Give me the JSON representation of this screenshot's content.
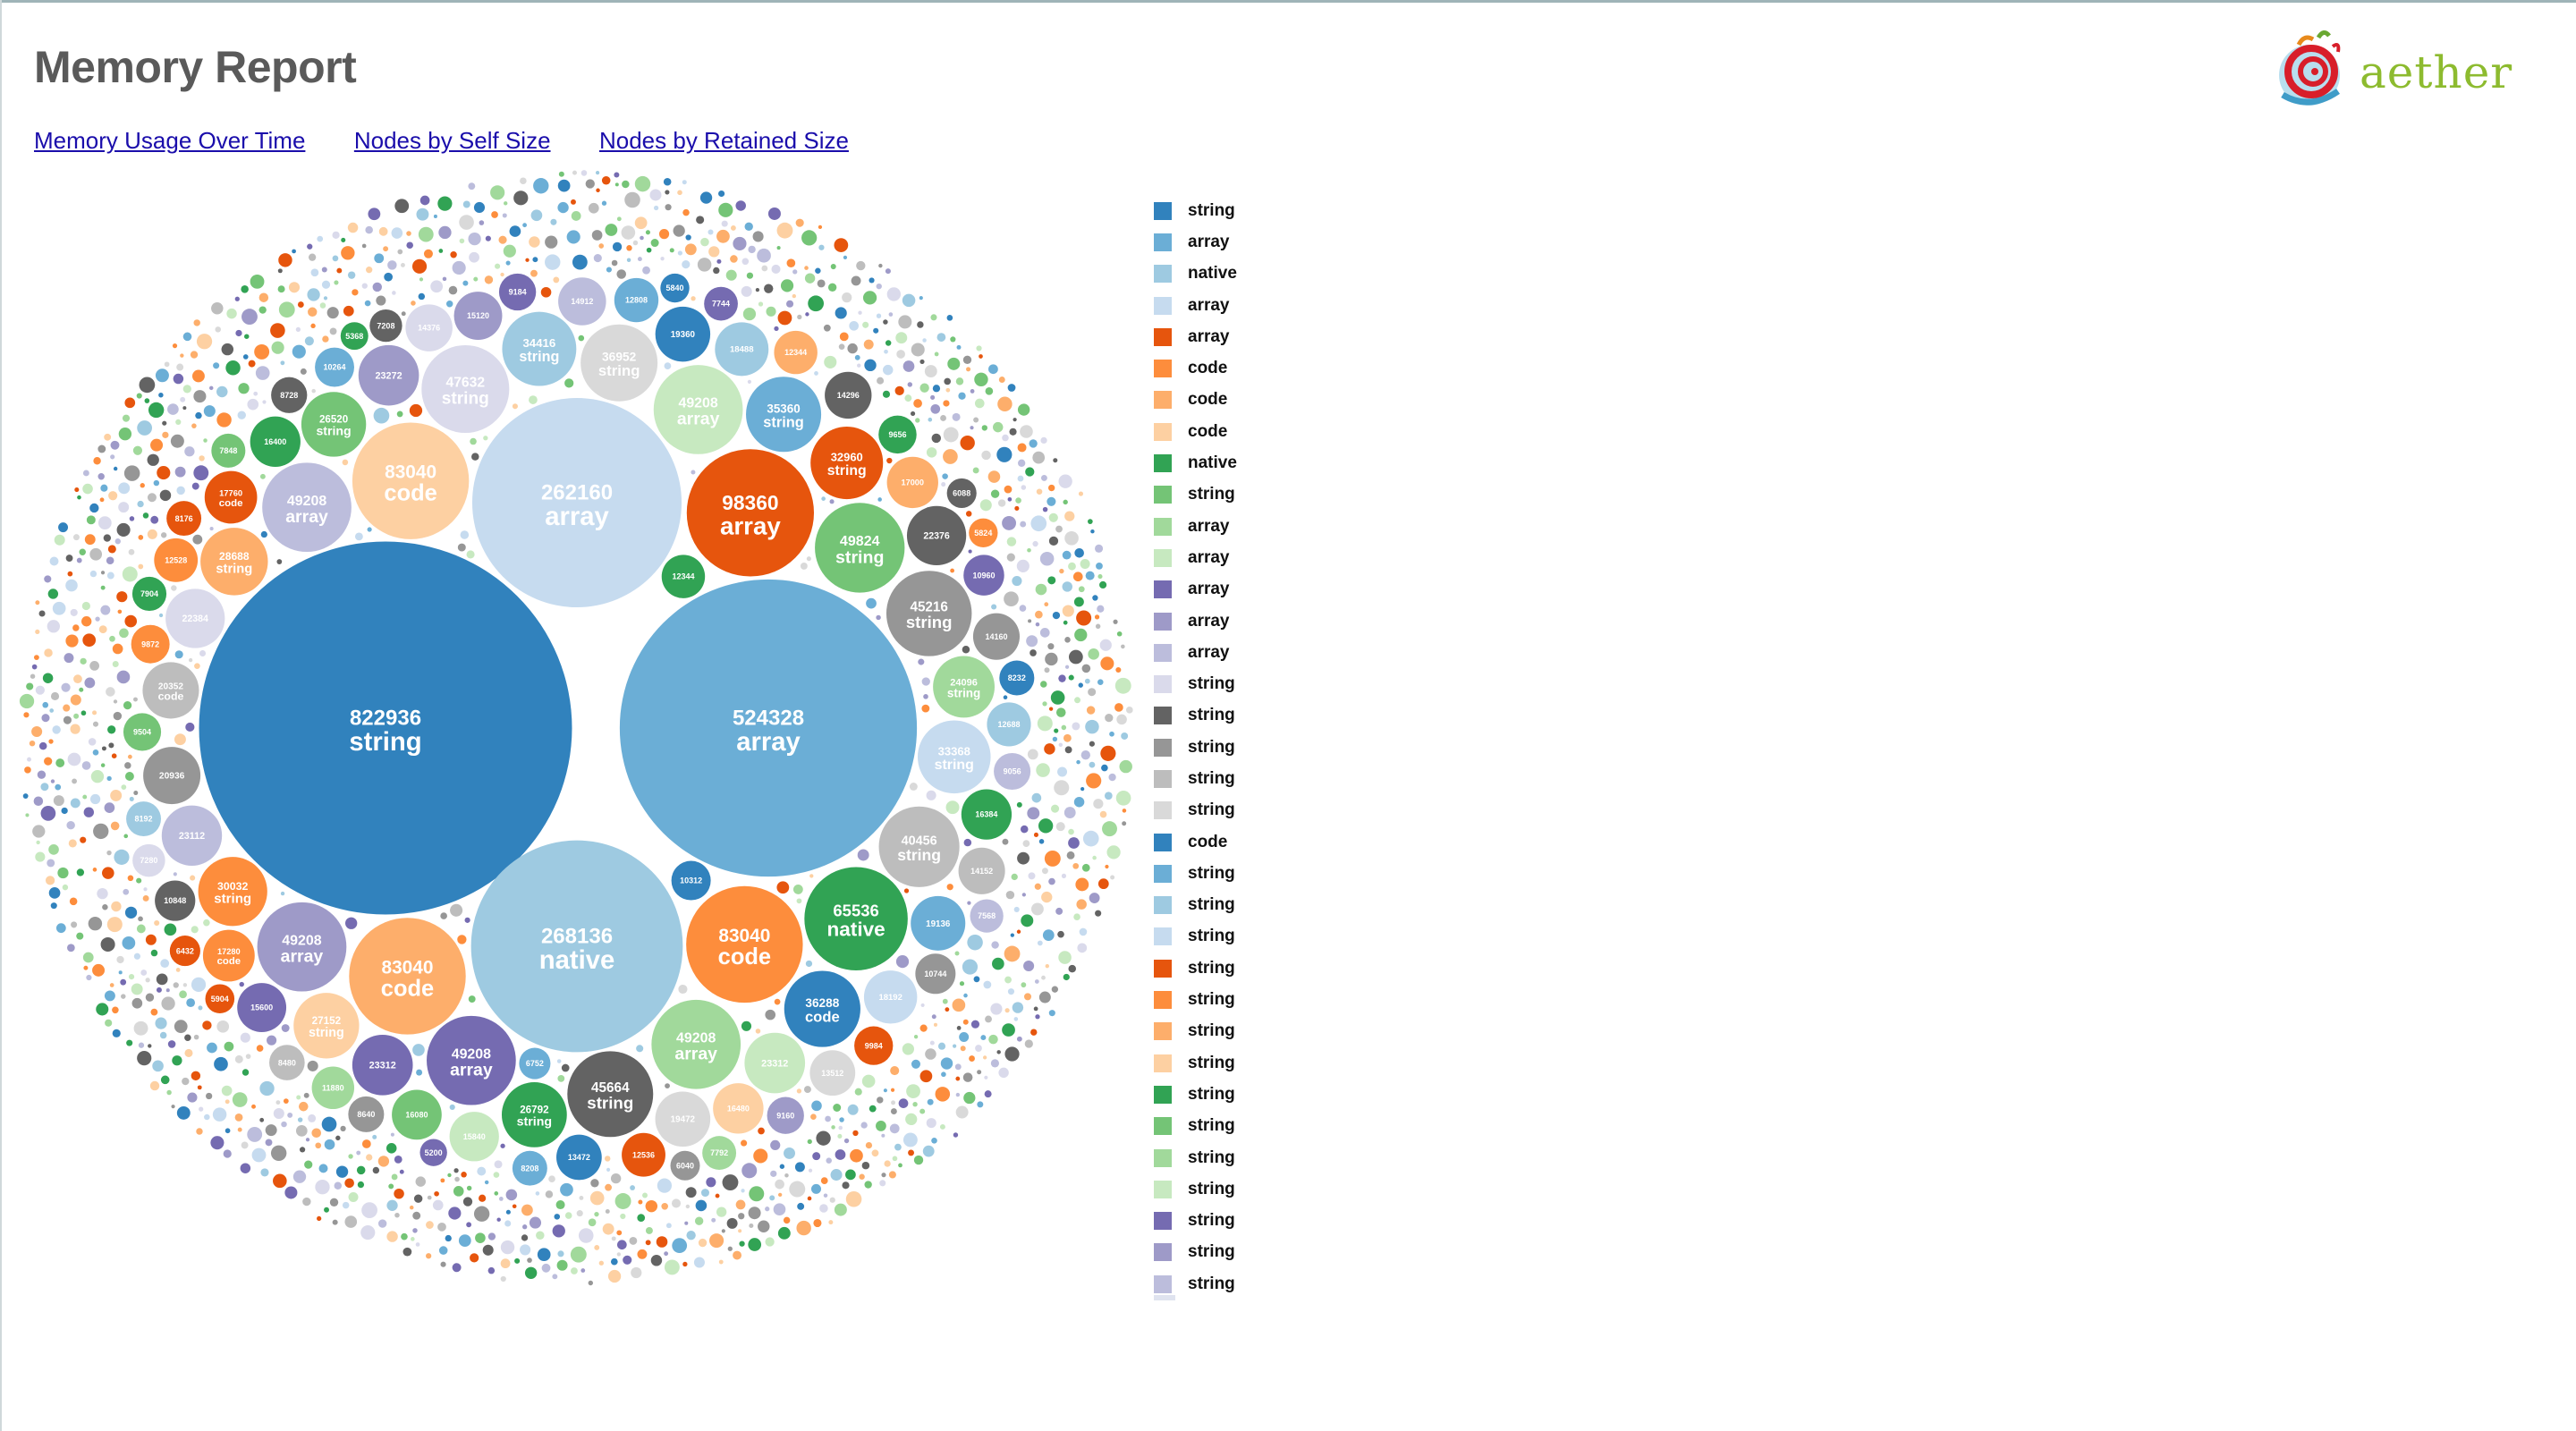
{
  "header": {
    "title": "Memory Report",
    "logo_text": "aether"
  },
  "nav": {
    "links": [
      "Memory Usage Over Time",
      "Nodes by Self Size",
      "Nodes by Retained Size"
    ]
  },
  "palette": [
    "#3182bd",
    "#6baed6",
    "#9ecae1",
    "#c6dbef",
    "#e6550d",
    "#fd8d3c",
    "#fdae6b",
    "#fdd0a2",
    "#31a354",
    "#74c476",
    "#a1d99b",
    "#c7e9c0",
    "#756bb1",
    "#9e9ac8",
    "#bcbddc",
    "#dadaeb",
    "#636363",
    "#969696",
    "#bdbdbd",
    "#d9d9d9"
  ],
  "chart_data": {
    "type": "bubble",
    "title": "",
    "legend_position": "right",
    "legend": [
      {
        "label": "string",
        "color": "#3182bd"
      },
      {
        "label": "array",
        "color": "#6baed6"
      },
      {
        "label": "native",
        "color": "#9ecae1"
      },
      {
        "label": "array",
        "color": "#c6dbef"
      },
      {
        "label": "array",
        "color": "#e6550d"
      },
      {
        "label": "code",
        "color": "#fd8d3c"
      },
      {
        "label": "code",
        "color": "#fdae6b"
      },
      {
        "label": "code",
        "color": "#fdd0a2"
      },
      {
        "label": "native",
        "color": "#31a354"
      },
      {
        "label": "string",
        "color": "#74c476"
      },
      {
        "label": "array",
        "color": "#a1d99b"
      },
      {
        "label": "array",
        "color": "#c7e9c0"
      },
      {
        "label": "array",
        "color": "#756bb1"
      },
      {
        "label": "array",
        "color": "#9e9ac8"
      },
      {
        "label": "array",
        "color": "#bcbddc"
      },
      {
        "label": "string",
        "color": "#dadaeb"
      },
      {
        "label": "string",
        "color": "#636363"
      },
      {
        "label": "string",
        "color": "#969696"
      },
      {
        "label": "string",
        "color": "#bdbdbd"
      },
      {
        "label": "string",
        "color": "#d9d9d9"
      },
      {
        "label": "code",
        "color": "#3182bd"
      },
      {
        "label": "string",
        "color": "#6baed6"
      },
      {
        "label": "string",
        "color": "#9ecae1"
      },
      {
        "label": "string",
        "color": "#c6dbef"
      },
      {
        "label": "string",
        "color": "#e6550d"
      },
      {
        "label": "string",
        "color": "#fd8d3c"
      },
      {
        "label": "string",
        "color": "#fdae6b"
      },
      {
        "label": "string",
        "color": "#fdd0a2"
      },
      {
        "label": "string",
        "color": "#31a354"
      },
      {
        "label": "string",
        "color": "#74c476"
      },
      {
        "label": "string",
        "color": "#a1d99b"
      },
      {
        "label": "string",
        "color": "#c7e9c0"
      },
      {
        "label": "string",
        "color": "#756bb1"
      },
      {
        "label": "string",
        "color": "#9e9ac8"
      },
      {
        "label": "string",
        "color": "#bcbddc"
      }
    ],
    "nodes": [
      {
        "value": 822936,
        "label": "string",
        "color": "#3182bd"
      },
      {
        "value": 524328,
        "label": "array",
        "color": "#6baed6"
      },
      {
        "value": 268136,
        "label": "native",
        "color": "#9ecae1"
      },
      {
        "value": 262160,
        "label": "array",
        "color": "#c6dbef"
      },
      {
        "value": 98360,
        "label": "array",
        "color": "#e6550d"
      },
      {
        "value": 83040,
        "label": "code",
        "color": "#fd8d3c"
      },
      {
        "value": 83040,
        "label": "code",
        "color": "#fdae6b"
      },
      {
        "value": 83040,
        "label": "code",
        "color": "#fdd0a2"
      },
      {
        "value": 65536,
        "label": "native",
        "color": "#31a354"
      },
      {
        "value": 49824,
        "label": "string",
        "color": "#74c476"
      },
      {
        "value": 49208,
        "label": "array",
        "color": "#a1d99b"
      },
      {
        "value": 49208,
        "label": "array",
        "color": "#c7e9c0"
      },
      {
        "value": 49208,
        "label": "array",
        "color": "#756bb1"
      },
      {
        "value": 49208,
        "label": "array",
        "color": "#9e9ac8"
      },
      {
        "value": 49208,
        "label": "array",
        "color": "#bcbddc"
      },
      {
        "value": 47632,
        "label": "string",
        "color": "#dadaeb"
      },
      {
        "value": 45664,
        "label": "string",
        "color": "#636363"
      },
      {
        "value": 45216,
        "label": "string",
        "color": "#969696"
      },
      {
        "value": 40456,
        "label": "string",
        "color": "#bdbdbd"
      },
      {
        "value": 36952,
        "label": "string",
        "color": "#d9d9d9"
      },
      {
        "value": 36288,
        "label": "code",
        "color": "#3182bd"
      },
      {
        "value": 35360,
        "label": "string",
        "color": "#6baed6"
      },
      {
        "value": 34416,
        "label": "string",
        "color": "#9ecae1"
      },
      {
        "value": 33368,
        "label": "string",
        "color": "#c6dbef"
      },
      {
        "value": 32960,
        "label": "string",
        "color": "#e6550d"
      },
      {
        "value": 30032,
        "label": "string",
        "color": "#fd8d3c"
      },
      {
        "value": 28688,
        "label": "string",
        "color": "#fdae6b"
      },
      {
        "value": 27152,
        "label": "string",
        "color": "#fdd0a2"
      },
      {
        "value": 26792,
        "label": "string",
        "color": "#31a354"
      },
      {
        "value": 26520,
        "label": "string",
        "color": "#74c476"
      },
      {
        "value": 24096,
        "label": "string",
        "color": "#a1d99b"
      },
      {
        "value": 23312,
        "label": "",
        "color": "#c7e9c0"
      },
      {
        "value": 23312,
        "label": "",
        "color": "#756bb1"
      },
      {
        "value": 23272,
        "label": "",
        "color": "#9e9ac8"
      },
      {
        "value": 23112,
        "label": "",
        "color": "#bcbddc"
      },
      {
        "value": 22384,
        "label": "",
        "color": "#dadaeb"
      },
      {
        "value": 22376,
        "label": "",
        "color": "#636363"
      },
      {
        "value": 20936,
        "label": "",
        "color": "#969696"
      },
      {
        "value": 20352,
        "label": "code",
        "color": "#bdbdbd"
      },
      {
        "value": 19472,
        "label": "",
        "color": "#d9d9d9"
      },
      {
        "value": 19360,
        "label": "",
        "color": "#3182bd"
      },
      {
        "value": 19136,
        "label": "",
        "color": "#6baed6"
      },
      {
        "value": 18488,
        "label": "",
        "color": "#9ecae1"
      },
      {
        "value": 18192,
        "label": "",
        "color": "#c6dbef"
      },
      {
        "value": 17760,
        "label": "code",
        "color": "#e6550d"
      },
      {
        "value": 17280,
        "label": "code",
        "color": "#fd8d3c"
      },
      {
        "value": 17000,
        "label": "",
        "color": "#fdae6b"
      },
      {
        "value": 16480,
        "label": "",
        "color": "#fdd0a2"
      },
      {
        "value": 16384,
        "label": "",
        "color": "#31a354"
      },
      {
        "value": 16080,
        "label": "",
        "color": "#74c476"
      },
      {
        "value": 16400,
        "label": "",
        "color": "#31a354"
      },
      {
        "value": 15840,
        "label": "",
        "color": "#c7e9c0"
      },
      {
        "value": 15600,
        "label": "",
        "color": "#756bb1"
      },
      {
        "value": 15120,
        "label": "",
        "color": "#9e9ac8"
      },
      {
        "value": 14912,
        "label": "",
        "color": "#bcbddc"
      },
      {
        "value": 14376,
        "label": "",
        "color": "#dadaeb"
      },
      {
        "value": 14296,
        "label": "",
        "color": "#636363"
      },
      {
        "value": 14160,
        "label": "",
        "color": "#969696"
      },
      {
        "value": 14152,
        "label": "",
        "color": "#bdbdbd"
      },
      {
        "value": 13512,
        "label": "",
        "color": "#d9d9d9"
      },
      {
        "value": 13472,
        "label": "",
        "color": "#3182bd"
      },
      {
        "value": 12808,
        "label": "",
        "color": "#6baed6"
      },
      {
        "value": 12688,
        "label": "",
        "color": "#9ecae1"
      },
      {
        "value": 12536,
        "label": "",
        "color": "#e6550d"
      },
      {
        "value": 12528,
        "label": "",
        "color": "#fd8d3c"
      },
      {
        "value": 12344,
        "label": "",
        "color": "#fdae6b"
      },
      {
        "value": 12344,
        "label": "",
        "color": "#31a354"
      },
      {
        "value": 11880,
        "label": "",
        "color": "#a1d99b"
      },
      {
        "value": 10960,
        "label": "",
        "color": "#756bb1"
      },
      {
        "value": 10848,
        "label": "",
        "color": "#636363"
      },
      {
        "value": 10744,
        "label": "",
        "color": "#969696"
      },
      {
        "value": 10312,
        "label": "",
        "color": "#3182bd"
      },
      {
        "value": 10264,
        "label": "",
        "color": "#6baed6"
      },
      {
        "value": 9984,
        "label": "",
        "color": "#e6550d"
      },
      {
        "value": 9872,
        "label": "",
        "color": "#fd8d3c"
      },
      {
        "value": 9656,
        "label": "",
        "color": "#31a354"
      },
      {
        "value": 9504,
        "label": "",
        "color": "#74c476"
      },
      {
        "value": 9184,
        "label": "",
        "color": "#756bb1"
      },
      {
        "value": 9160,
        "label": "",
        "color": "#9e9ac8"
      },
      {
        "value": 9056,
        "label": "",
        "color": "#bcbddc"
      },
      {
        "value": 8728,
        "label": "",
        "color": "#636363"
      },
      {
        "value": 8640,
        "label": "",
        "color": "#969696"
      },
      {
        "value": 8480,
        "label": "",
        "color": "#bdbdbd"
      },
      {
        "value": 8232,
        "label": "",
        "color": "#3182bd"
      },
      {
        "value": 8208,
        "label": "",
        "color": "#6baed6"
      },
      {
        "value": 8192,
        "label": "",
        "color": "#9ecae1"
      },
      {
        "value": 8176,
        "label": "",
        "color": "#e6550d"
      },
      {
        "value": 7904,
        "label": "",
        "color": "#31a354"
      },
      {
        "value": 7848,
        "label": "",
        "color": "#74c476"
      },
      {
        "value": 7792,
        "label": "",
        "color": "#a1d99b"
      },
      {
        "value": 7744,
        "label": "",
        "color": "#756bb1"
      },
      {
        "value": 7568,
        "label": "",
        "color": "#bcbddc"
      },
      {
        "value": 7280,
        "label": "",
        "color": "#dadaeb"
      },
      {
        "value": 7208,
        "label": "",
        "color": "#636363"
      },
      {
        "value": 6752,
        "label": "",
        "color": "#6baed6"
      },
      {
        "value": 6432,
        "label": "",
        "color": "#e6550d"
      },
      {
        "value": 6088,
        "label": "",
        "color": "#636363"
      },
      {
        "value": 6040,
        "label": "",
        "color": "#969696"
      },
      {
        "value": 5904,
        "label": "",
        "color": "#e6550d"
      },
      {
        "value": 5840,
        "label": "",
        "color": "#3182bd"
      },
      {
        "value": 5824,
        "label": "",
        "color": "#fd8d3c"
      },
      {
        "value": 5368,
        "label": "",
        "color": "#31a354"
      },
      {
        "value": 5200,
        "label": "",
        "color": "#756bb1"
      }
    ]
  }
}
